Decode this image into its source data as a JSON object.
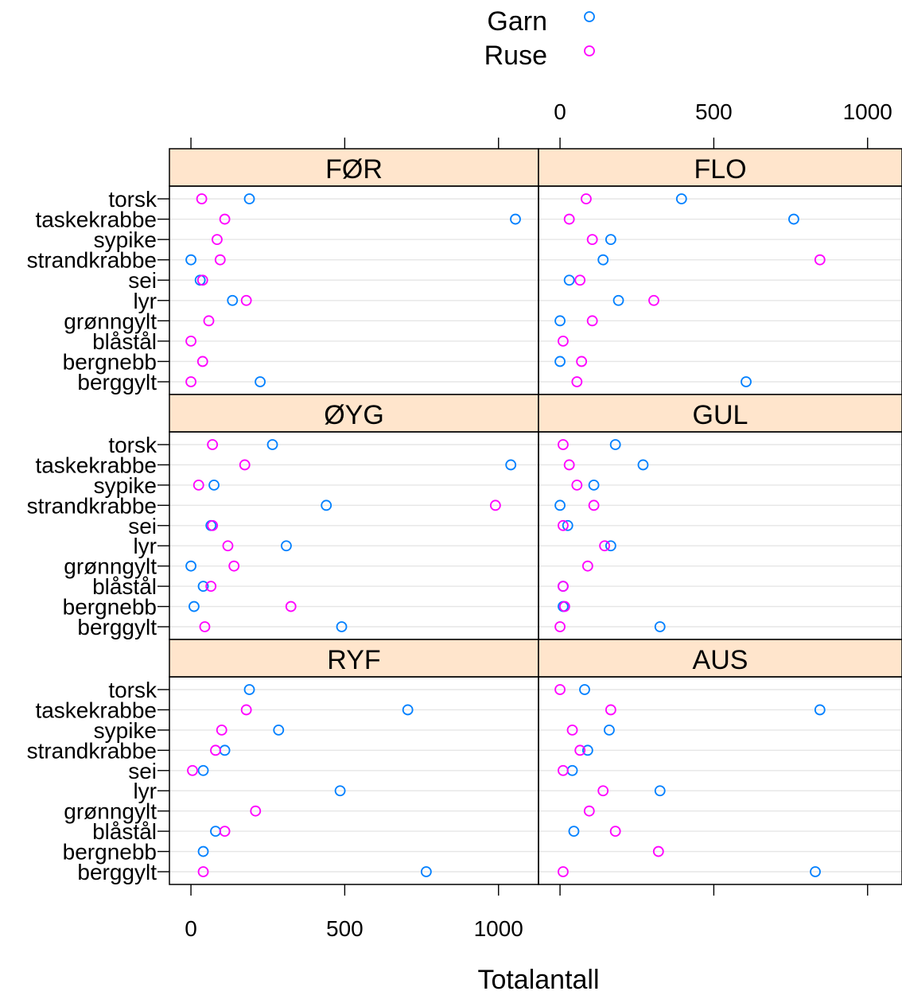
{
  "chart_data": {
    "type": "scatter",
    "xlabel": "Totalantall",
    "xlim": [
      -70,
      1130
    ],
    "xticks": [
      0,
      500,
      1000
    ],
    "categories": [
      "torsk",
      "taskekrabbe",
      "sypike",
      "strandkrabbe",
      "sei",
      "lyr",
      "grønngylt",
      "blåstål",
      "bergnebb",
      "berggylt"
    ],
    "legend": {
      "placement": "top",
      "items": [
        {
          "name": "Garn",
          "color": "#0080ff"
        },
        {
          "name": "Ruse",
          "color": "#ff00ff"
        }
      ]
    },
    "panels": [
      {
        "title": "FØR",
        "series": [
          {
            "name": "Garn",
            "values": [
              190,
              1055,
              null,
              0,
              30,
              135,
              null,
              null,
              null,
              225
            ]
          },
          {
            "name": "Ruse",
            "values": [
              35,
              110,
              85,
              95,
              38,
              180,
              58,
              0,
              38,
              0
            ]
          }
        ]
      },
      {
        "title": "FLO",
        "series": [
          {
            "name": "Garn",
            "values": [
              395,
              760,
              165,
              140,
              30,
              190,
              0,
              null,
              0,
              605
            ]
          },
          {
            "name": "Ruse",
            "values": [
              85,
              30,
              105,
              845,
              65,
              305,
              105,
              10,
              70,
              55
            ]
          }
        ]
      },
      {
        "title": "ØYG",
        "series": [
          {
            "name": "Garn",
            "values": [
              265,
              1040,
              75,
              440,
              65,
              310,
              0,
              40,
              10,
              490
            ]
          },
          {
            "name": "Ruse",
            "values": [
              70,
              175,
              25,
              990,
              70,
              120,
              140,
              65,
              325,
              45
            ]
          }
        ]
      },
      {
        "title": "GUL",
        "series": [
          {
            "name": "Garn",
            "values": [
              180,
              270,
              110,
              0,
              25,
              165,
              null,
              10,
              10,
              325
            ]
          },
          {
            "name": "Ruse",
            "values": [
              10,
              30,
              55,
              110,
              10,
              145,
              90,
              10,
              15,
              0
            ]
          }
        ]
      },
      {
        "title": "RYF",
        "series": [
          {
            "name": "Garn",
            "values": [
              190,
              705,
              285,
              110,
              40,
              485,
              null,
              80,
              40,
              765
            ]
          },
          {
            "name": "Ruse",
            "values": [
              null,
              180,
              100,
              80,
              5,
              null,
              210,
              110,
              null,
              40
            ]
          }
        ]
      },
      {
        "title": "AUS",
        "series": [
          {
            "name": "Garn",
            "values": [
              80,
              845,
              160,
              90,
              40,
              325,
              null,
              45,
              null,
              830
            ]
          },
          {
            "name": "Ruse",
            "values": [
              0,
              165,
              40,
              65,
              10,
              140,
              95,
              180,
              320,
              10
            ]
          }
        ]
      }
    ]
  }
}
